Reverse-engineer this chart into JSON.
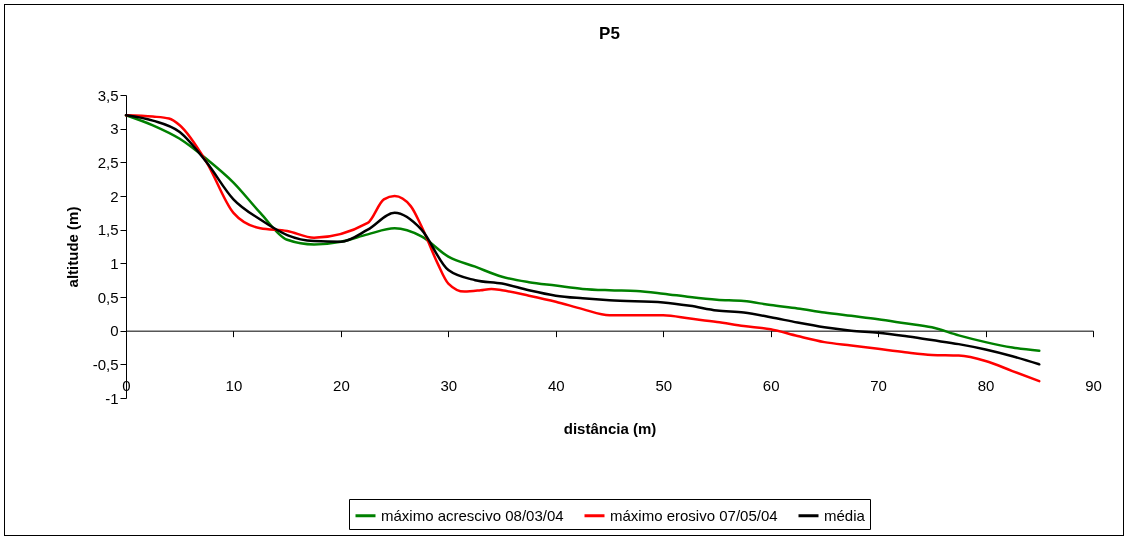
{
  "chart_data": {
    "type": "line",
    "title": "P5",
    "xlabel": "distância (m)",
    "ylabel": "altitude (m)",
    "xlim": [
      0,
      90
    ],
    "xticks": [
      0,
      10,
      20,
      30,
      40,
      50,
      60,
      70,
      80,
      90
    ],
    "ylim": [
      -1,
      3.5
    ],
    "yticks": [
      {
        "value": -1,
        "label": "-1"
      },
      {
        "value": -0.5,
        "label": "-0,5"
      },
      {
        "value": 0,
        "label": "0"
      },
      {
        "value": 0.5,
        "label": "0,5"
      },
      {
        "value": 1,
        "label": "1"
      },
      {
        "value": 1.5,
        "label": "1,5"
      },
      {
        "value": 2,
        "label": "2"
      },
      {
        "value": 2.5,
        "label": "2,5"
      },
      {
        "value": 3,
        "label": "3"
      },
      {
        "value": 3.5,
        "label": "3,5"
      }
    ],
    "legend": "bottom",
    "marker": "none",
    "line_style": "solid",
    "series": [
      {
        "name": "máximo acrescivo 08/03/04",
        "color": "#008000",
        "x": [
          0,
          2.5,
          5,
          7.5,
          10,
          12.5,
          15,
          17.5,
          20,
          22.5,
          25,
          27.5,
          30,
          32.5,
          35,
          37.5,
          40,
          42.5,
          45,
          47.5,
          50,
          52.5,
          55,
          57.5,
          60,
          62.5,
          65,
          67.5,
          70,
          72.5,
          75,
          77.5,
          80,
          82.5,
          85
        ],
        "values": [
          3.2,
          3.05,
          2.85,
          2.55,
          2.2,
          1.75,
          1.35,
          1.28,
          1.32,
          1.43,
          1.52,
          1.4,
          1.1,
          0.95,
          0.8,
          0.72,
          0.67,
          0.62,
          0.6,
          0.59,
          0.55,
          0.5,
          0.46,
          0.44,
          0.38,
          0.33,
          0.27,
          0.22,
          0.17,
          0.11,
          0.05,
          -0.07,
          -0.17,
          -0.25,
          -0.3
        ]
      },
      {
        "name": "máximo erosivo 07/05/04",
        "color": "#ff0000",
        "x": [
          0,
          2.5,
          4,
          5,
          7.5,
          10,
          12.5,
          15,
          17.5,
          22.5,
          24,
          25,
          26.5,
          27.5,
          29,
          30,
          31.5,
          33,
          34,
          35,
          37.5,
          40,
          42.5,
          45,
          50,
          52.5,
          55,
          57.5,
          60,
          62.5,
          65,
          67.5,
          70,
          72.5,
          75,
          77.5,
          80,
          82.5,
          85
        ],
        "values": [
          3.2,
          3.18,
          3.15,
          3.05,
          2.5,
          1.75,
          1.52,
          1.48,
          1.38,
          1.6,
          1.95,
          2.0,
          1.85,
          1.55,
          1.0,
          0.7,
          0.58,
          0.6,
          0.62,
          0.6,
          0.52,
          0.43,
          0.32,
          0.23,
          0.23,
          0.18,
          0.13,
          0.07,
          0.02,
          -0.08,
          -0.17,
          -0.22,
          -0.27,
          -0.32,
          -0.36,
          -0.37,
          -0.45,
          -0.6,
          -0.75
        ]
      },
      {
        "name": "média",
        "color": "#000000",
        "x": [
          0,
          2.5,
          5,
          7.5,
          10,
          12.5,
          15,
          17.5,
          20,
          22.5,
          25,
          27.5,
          30,
          32.5,
          35,
          37.5,
          40,
          42.5,
          45,
          50,
          52.5,
          55,
          57.5,
          60,
          62.5,
          65,
          67.5,
          70,
          72.5,
          75,
          77.5,
          80,
          82.5,
          85
        ],
        "values": [
          3.2,
          3.12,
          2.95,
          2.5,
          1.95,
          1.65,
          1.42,
          1.33,
          1.32,
          1.5,
          1.75,
          1.5,
          0.9,
          0.75,
          0.7,
          0.6,
          0.52,
          0.48,
          0.45,
          0.42,
          0.37,
          0.3,
          0.27,
          0.2,
          0.12,
          0.05,
          0.0,
          -0.03,
          -0.08,
          -0.14,
          -0.2,
          -0.28,
          -0.38,
          -0.5
        ]
      }
    ]
  }
}
